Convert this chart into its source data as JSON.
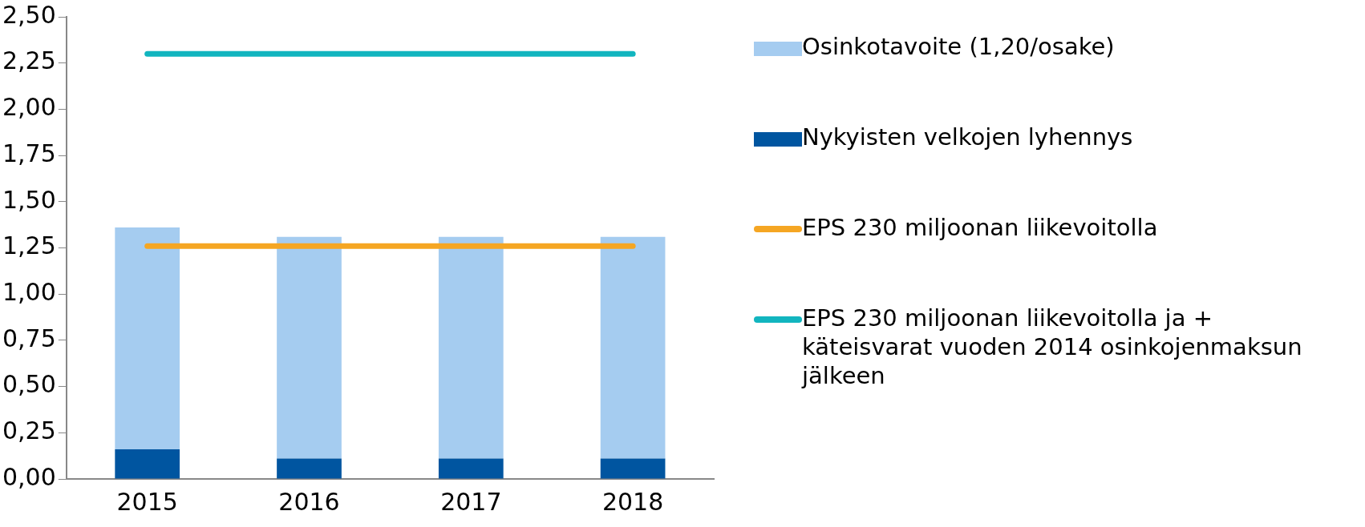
{
  "chart_data": {
    "type": "bar",
    "stacked": true,
    "categories": [
      "2015",
      "2016",
      "2017",
      "2018"
    ],
    "series": [
      {
        "name": "Nykyisten velkojen lyhennys",
        "color": "#0055a0",
        "values": [
          0.16,
          0.11,
          0.11,
          0.11
        ]
      },
      {
        "name": "Osinkotavoite (1,20/osake)",
        "color": "#a5ccf0",
        "values": [
          1.2,
          1.2,
          1.2,
          1.2
        ]
      },
      {
        "name": "EPS 230 miljoonan liikevoitolla",
        "type": "line",
        "color": "#f5a623",
        "values": [
          1.26,
          1.26,
          1.26,
          1.26
        ]
      },
      {
        "name": "EPS 230 miljoonan liikevoitolla ja + käteisvarat vuoden 2014 osinkojenmaksun jälkeen",
        "type": "line",
        "color": "#12b5bf",
        "values": [
          2.3,
          2.3,
          2.3,
          2.3
        ]
      }
    ],
    "ylim": [
      0,
      2.5
    ],
    "yticks": [
      {
        "value": 0,
        "label": "0,00"
      },
      {
        "value": 0.25,
        "label": "0,25"
      },
      {
        "value": 0.5,
        "label": "0,50"
      },
      {
        "value": 0.75,
        "label": "0,75"
      },
      {
        "value": 1,
        "label": "1,00"
      },
      {
        "value": 1.25,
        "label": "1,25"
      },
      {
        "value": 1.5,
        "label": "1,50"
      },
      {
        "value": 1.75,
        "label": "1,75"
      },
      {
        "value": 2,
        "label": "2,00"
      },
      {
        "value": 2.25,
        "label": "2,25"
      },
      {
        "value": 2.5,
        "label": "2,50"
      }
    ],
    "grid": false,
    "legend": "right",
    "marker": "none",
    "line_style": "solid"
  }
}
